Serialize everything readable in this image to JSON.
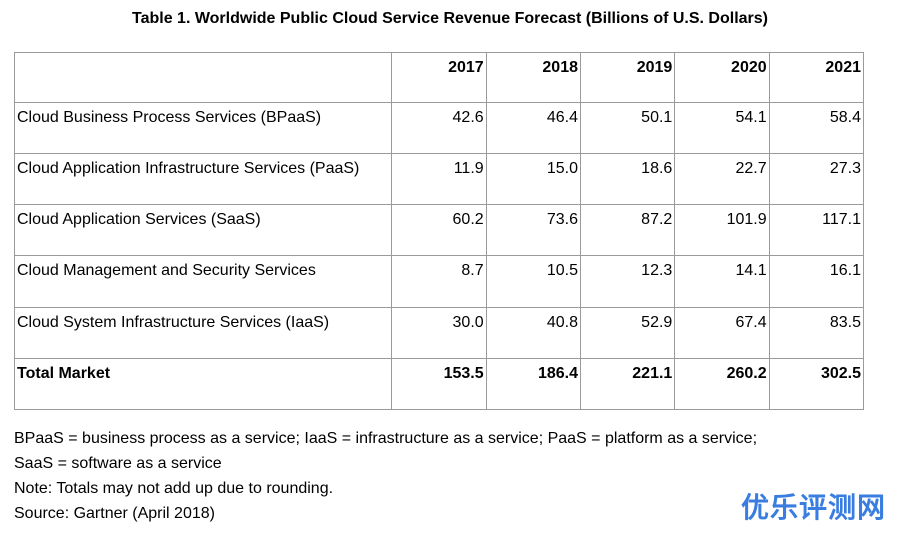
{
  "chart_data": {
    "type": "table",
    "title": "Table 1. Worldwide Public Cloud Service Revenue Forecast (Billions of U.S. Dollars)",
    "columns": [
      "",
      "2017",
      "2018",
      "2019",
      "2020",
      "2021"
    ],
    "rows": [
      {
        "label": "Cloud Business Process Services (BPaaS)",
        "values": [
          "42.6",
          "46.4",
          "50.1",
          "54.1",
          "58.4"
        ]
      },
      {
        "label": "Cloud Application Infrastructure Services (PaaS)",
        "values": [
          "11.9",
          "15.0",
          "18.6",
          "22.7",
          "27.3"
        ]
      },
      {
        "label": "Cloud Application Services (SaaS)",
        "values": [
          "60.2",
          "73.6",
          "87.2",
          "101.9",
          "117.1"
        ]
      },
      {
        "label": "Cloud Management and Security Services",
        "values": [
          "8.7",
          "10.5",
          "12.3",
          "14.1",
          "16.1"
        ]
      },
      {
        "label": "Cloud System Infrastructure Services (IaaS)",
        "values": [
          "30.0",
          "40.8",
          "52.9",
          "67.4",
          "83.5"
        ]
      },
      {
        "label": "Total Market",
        "values": [
          "153.5",
          "186.4",
          "221.1",
          "260.2",
          "302.5"
        ],
        "bold": true
      }
    ]
  },
  "notes": [
    "BPaaS = business process as a service; IaaS = infrastructure as a service; PaaS = platform as a service;",
    "SaaS = software as a service",
    "Note: Totals may not add up due to rounding.",
    "Source: Gartner (April 2018)"
  ],
  "watermark": "优乐评测网",
  "colors": {
    "watermark": "#3a7de0",
    "border": "#9a9a9a"
  }
}
